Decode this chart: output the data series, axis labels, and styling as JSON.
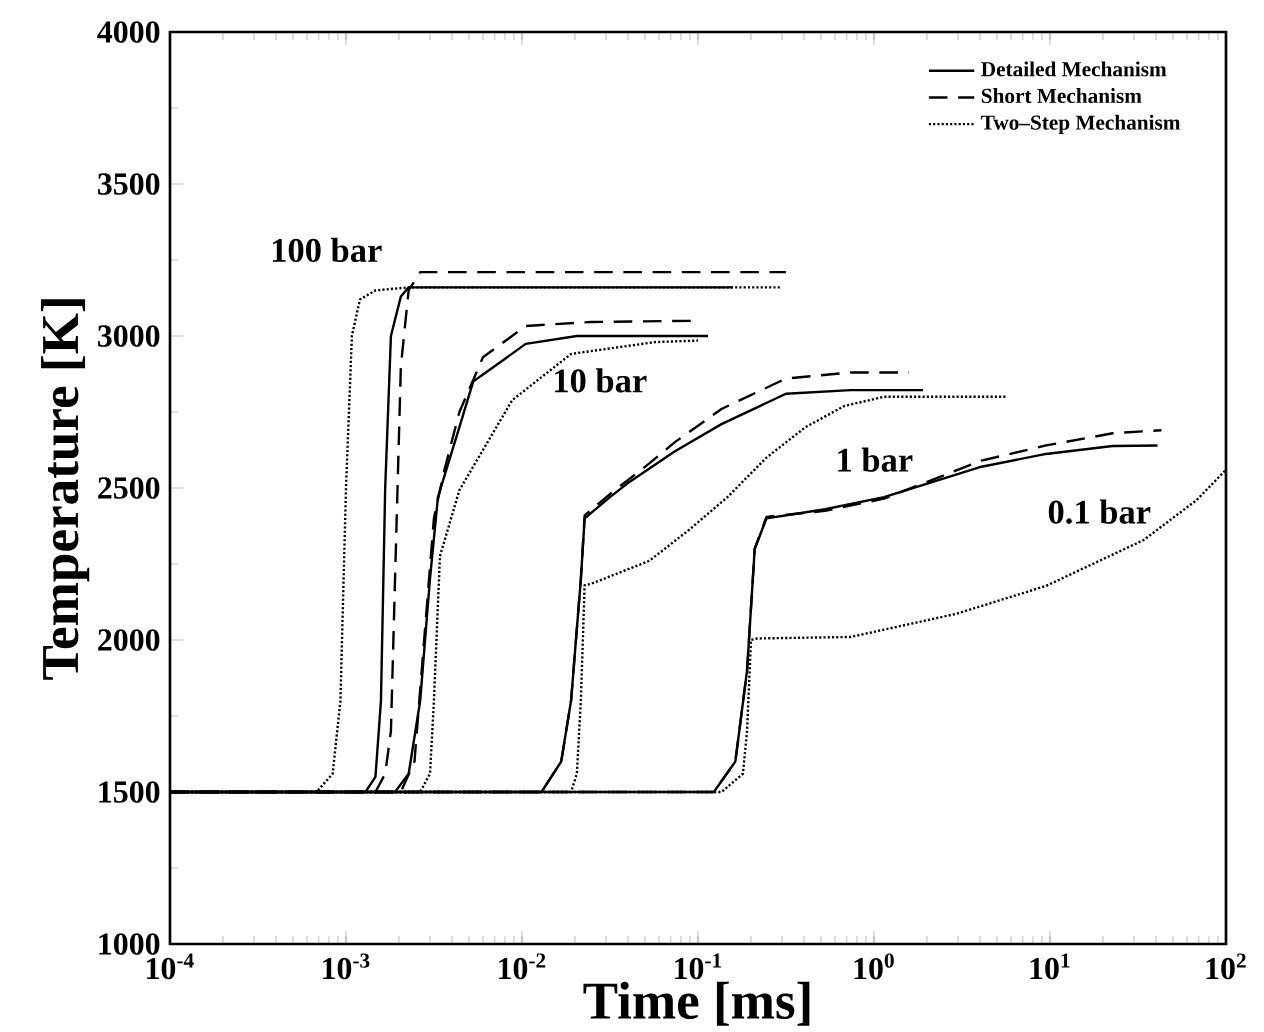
{
  "chart_data": {
    "type": "line",
    "xlabel": "Time [ms]",
    "ylabel": "Temperature [K]",
    "log": "x",
    "xlim": [
      0.0001,
      100
    ],
    "ylim": [
      1000,
      4000
    ],
    "xticks": [
      {
        "value": 0.0001,
        "label": "10$^{-4}$"
      },
      {
        "value": 0.001,
        "label": "10$^{-3}$"
      },
      {
        "value": 0.01,
        "label": "10$^{-2}$"
      },
      {
        "value": 0.1,
        "label": "10$^{-1}$"
      },
      {
        "value": 1,
        "label": "10$^{0}$"
      },
      {
        "value": 10,
        "label": "10$^{1}$"
      },
      {
        "value": 100,
        "label": "10$^{2}$"
      }
    ],
    "yticks": [
      1000,
      1500,
      2000,
      2500,
      3000,
      3500,
      4000
    ],
    "grid": false,
    "legend": "top right",
    "marker": "none",
    "series": [
      {
        "name": "Detailed Mechanism",
        "color": "#000000",
        "line_style": "solid",
        "x": [
          0.0001,
          0.00129,
          0.00147,
          0.00158,
          0.00167,
          0.0018,
          0.00205,
          0.00227,
          0.158
        ],
        "values": [
          1500,
          1500,
          1550,
          1800,
          2500,
          3000,
          3130,
          3160,
          3160
        ]
      },
      {
        "name": "Short Mechanism",
        "color": "#000000",
        "line_style": "dashed",
        "x": [
          0.0001,
          0.00147,
          0.00167,
          0.0018,
          0.0019,
          0.00205,
          0.00227,
          0.00264,
          0.316
        ],
        "values": [
          1500,
          1500,
          1560,
          1700,
          2200,
          2900,
          3150,
          3210,
          3210
        ]
      },
      {
        "name": "Two–Step Mechanism",
        "color": "#000000",
        "line_style": "dotted",
        "x": [
          0.0001,
          0.00068,
          0.00084,
          0.00093,
          0.001,
          0.00108,
          0.0012,
          0.00147,
          0.00227,
          0.293
        ],
        "values": [
          1500,
          1500,
          1560,
          1800,
          2500,
          3000,
          3120,
          3150,
          3160,
          3160
        ]
      },
      {
        "color": "#000000",
        "line_style": "solid",
        "x": [
          0.0001,
          0.0019,
          0.00227,
          0.00264,
          0.003,
          0.00333,
          0.00441,
          0.00528,
          0.0105,
          0.0205,
          0.114
        ],
        "values": [
          1500,
          1500,
          1560,
          1800,
          2200,
          2470,
          2700,
          2850,
          2974,
          3000,
          3000
        ]
      },
      {
        "color": "#000000",
        "line_style": "dashed",
        "x": [
          0.0001,
          0.00205,
          0.00245,
          0.00278,
          0.00316,
          0.00359,
          0.00441,
          0.006,
          0.0105,
          0.0245,
          0.095
        ],
        "values": [
          1500,
          1500,
          1600,
          2000,
          2400,
          2550,
          2750,
          2930,
          3033,
          3046,
          3050
        ]
      },
      {
        "color": "#000000",
        "line_style": "dotted",
        "x": [
          0.0001,
          0.00264,
          0.003,
          0.00316,
          0.00342,
          0.00441,
          0.0088,
          0.019,
          0.057,
          0.1
        ],
        "values": [
          1500,
          1500,
          1560,
          1800,
          2276,
          2493,
          2789,
          2941,
          2980,
          2985
        ]
      },
      {
        "color": "#000000",
        "line_style": "solid",
        "x": [
          0.0001,
          0.0129,
          0.0167,
          0.019,
          0.0216,
          0.0227,
          0.0316,
          0.0408,
          0.0736,
          0.136,
          0.316,
          0.736,
          1.9
        ],
        "values": [
          1500,
          1500,
          1600,
          1800,
          2200,
          2400,
          2470,
          2520,
          2620,
          2710,
          2810,
          2822,
          2822
        ]
      },
      {
        "color": "#000000",
        "line_style": "dashed",
        "x": [
          0.0001,
          0.0129,
          0.0167,
          0.019,
          0.0216,
          0.0227,
          0.0316,
          0.0527,
          0.0736,
          0.136,
          0.316,
          0.736,
          1.58
        ],
        "values": [
          1500,
          1500,
          1600,
          1800,
          2200,
          2410,
          2480,
          2580,
          2650,
          2760,
          2860,
          2880,
          2880
        ]
      },
      {
        "color": "#000000",
        "line_style": "dotted",
        "x": [
          0.0001,
          0.019,
          0.0205,
          0.0216,
          0.0227,
          0.0245,
          0.0527,
          0.088,
          0.147,
          0.245,
          0.408,
          0.68,
          1.14,
          5.7
        ],
        "values": [
          1500,
          1500,
          1560,
          1800,
          2180,
          2184,
          2260,
          2360,
          2470,
          2600,
          2700,
          2770,
          2800,
          2800
        ]
      },
      {
        "color": "#000000",
        "line_style": "solid",
        "x": [
          0.0001,
          0.123,
          0.163,
          0.19,
          0.21,
          0.245,
          0.527,
          1.14,
          2.45,
          4.08,
          9.5,
          22.7,
          40.8
        ],
        "values": [
          1500,
          1500,
          1600,
          1900,
          2300,
          2400,
          2430,
          2470,
          2530,
          2570,
          2612,
          2638,
          2640
        ]
      },
      {
        "color": "#000000",
        "line_style": "dashed",
        "x": [
          0.0001,
          0.123,
          0.163,
          0.19,
          0.21,
          0.245,
          0.527,
          1.14,
          2.45,
          4.08,
          9.5,
          22.7,
          43
        ],
        "values": [
          1500,
          1500,
          1600,
          1900,
          2300,
          2405,
          2425,
          2465,
          2540,
          2590,
          2640,
          2680,
          2690
        ]
      },
      {
        "color": "#000000",
        "line_style": "dotted",
        "x": [
          0.0001,
          0.136,
          0.18,
          0.19,
          0.2,
          0.216,
          0.736,
          2.93,
          9.5,
          34.1,
          68,
          100
        ],
        "values": [
          1500,
          1500,
          1560,
          1700,
          2000,
          2005,
          2010,
          2086,
          2178,
          2329,
          2460,
          2560
        ]
      }
    ],
    "annotations": [
      "100 bar",
      "10 bar",
      "1 bar",
      "0.1 bar"
    ]
  }
}
